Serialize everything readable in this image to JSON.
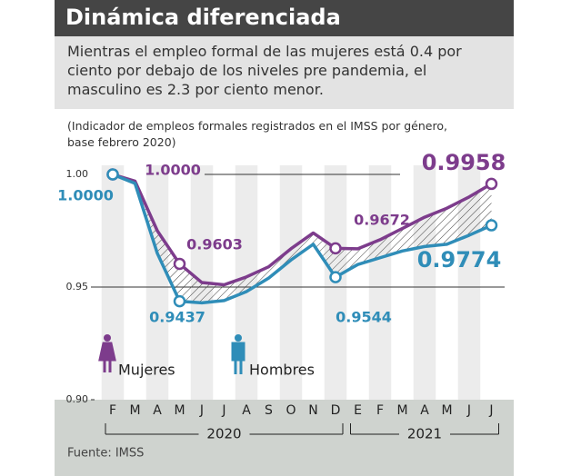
{
  "chart_data": {
    "type": "line",
    "title": "Dinámica diferenciada",
    "subtitle": "Mientras el empleo formal de las mujeres está 0.4 por ciento por debajo de los niveles pre pandemia, el masculino es 2.3 por ciento menor.",
    "note": "(Indicador de empleos formales registrados en el IMSS por género, base febrero 2020)",
    "source": "Fuente: IMSS",
    "categories": [
      "F",
      "M",
      "A",
      "M",
      "J",
      "J",
      "A",
      "S",
      "O",
      "N",
      "D",
      "E",
      "F",
      "M",
      "A",
      "M",
      "J",
      "J"
    ],
    "year_groups": [
      {
        "label": "2020",
        "start": 0,
        "end": 10
      },
      {
        "label": "2021",
        "start": 11,
        "end": 17
      }
    ],
    "ylim": [
      0.9,
      1.005
    ],
    "yticks": [
      {
        "value": 0.9,
        "label": "0.90"
      },
      {
        "value": 0.95,
        "label": "0.95"
      },
      {
        "value": 1.0,
        "label": "1.00"
      }
    ],
    "series": [
      {
        "name": "Mujeres",
        "color": "#7d3c8c",
        "values": [
          1.0,
          0.997,
          0.975,
          0.9603,
          0.952,
          0.951,
          0.9545,
          0.959,
          0.967,
          0.974,
          0.9672,
          0.967,
          0.971,
          0.976,
          0.981,
          0.985,
          0.99,
          0.9958
        ],
        "value_labels": [
          "1.0000",
          null,
          null,
          "0.9603",
          null,
          null,
          null,
          null,
          null,
          null,
          "0.9672",
          null,
          null,
          null,
          null,
          null,
          null,
          "0.9958"
        ]
      },
      {
        "name": "Hombres",
        "color": "#2f8db8",
        "values": [
          1.0,
          0.996,
          0.965,
          0.9437,
          0.943,
          0.944,
          0.948,
          0.954,
          0.962,
          0.969,
          0.9544,
          0.96,
          0.963,
          0.966,
          0.968,
          0.969,
          0.973,
          0.9774
        ],
        "value_labels": [
          "1.0000",
          null,
          null,
          "0.9437",
          null,
          null,
          null,
          null,
          null,
          null,
          "0.9544",
          null,
          null,
          null,
          null,
          null,
          null,
          "0.9774"
        ]
      }
    ]
  }
}
